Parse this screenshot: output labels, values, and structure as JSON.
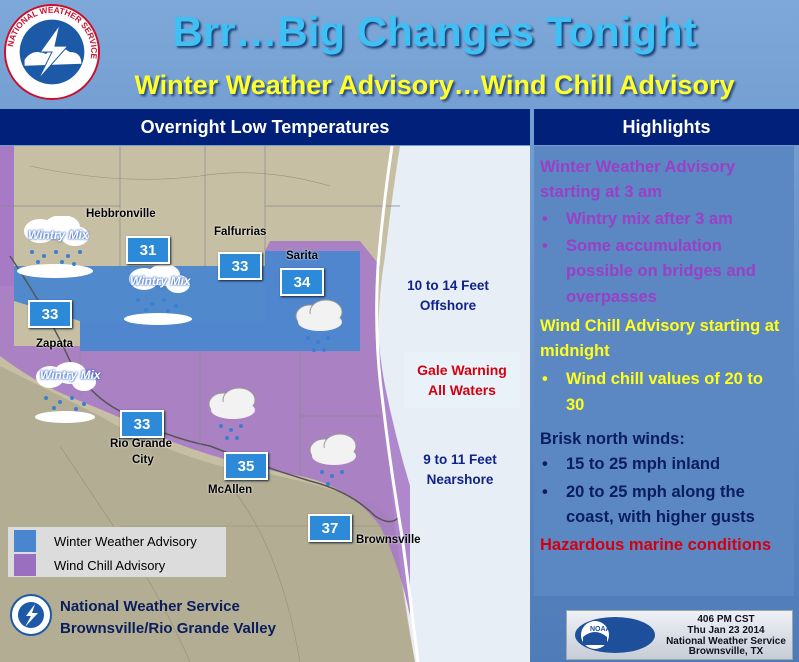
{
  "header": {
    "title": "Brr…Big Changes Tonight",
    "subtitle": "Winter Weather Advisory…Wind Chill Advisory",
    "logo_text": "NATIONAL WEATHER SERVICE"
  },
  "left_header": "Overnight Low Temperatures",
  "right_header": "Highlights",
  "map": {
    "temperatures": [
      {
        "id": "hebbronville-temp",
        "value": "31"
      },
      {
        "id": "falfurrias-temp",
        "value": "33"
      },
      {
        "id": "sarita-temp",
        "value": "34"
      },
      {
        "id": "zapata-temp",
        "value": "33"
      },
      {
        "id": "rio-grande-temp",
        "value": "33"
      },
      {
        "id": "mcallen-temp",
        "value": "35"
      },
      {
        "id": "brownsville-temp",
        "value": "37"
      }
    ],
    "cities": {
      "hebbronville": "Hebbronville",
      "falfurrias": "Falfurrias",
      "sarita": "Sarita",
      "zapata": "Zapata",
      "rio_grande_line1": "Rio Grande",
      "rio_grande_line2": "City",
      "mcallen": "McAllen",
      "brownsville": "Brownsville"
    },
    "wintry_mix_label": "Wintry Mix",
    "offshore_line1": "10 to 14 Feet",
    "offshore_line2": "Offshore",
    "gale_line1": "Gale Warning",
    "gale_line2": "All Waters",
    "nearshore_line1": "9 to 11 Feet",
    "nearshore_line2": "Nearshore"
  },
  "legend": {
    "items": [
      {
        "label": "Winter Weather Advisory",
        "color": "#4a86cf"
      },
      {
        "label": "Wind Chill Advisory",
        "color": "#9a6fbf"
      }
    ]
  },
  "highlights": {
    "wwa_line1": "Winter Weather Advisory",
    "wwa_line2": "starting at 3 am",
    "wwa_b1": "Wintry mix after 3 am",
    "wwa_b2_l1": "Some accumulation",
    "wwa_b2_l2": "possible on bridges and",
    "wwa_b2_l3": "overpasses",
    "wca_line1": "Wind Chill Advisory starting at",
    "wca_line2": "midnight",
    "wca_b1_l1": "Wind chill values of  20 to",
    "wca_b1_l2": "30",
    "winds_title": "Brisk north winds:",
    "winds_b1": "15 to 25 mph inland",
    "winds_b2_l1": "20 to 25 mph along the",
    "winds_b2_l2": "coast, with higher gusts",
    "marine": "Hazardous marine conditions"
  },
  "footer": {
    "line1": "National Weather Service",
    "line2": "Brownsville/Rio Grande Valley"
  },
  "stamp": {
    "logo_text": "NOAA",
    "time": "406 PM CST",
    "date": "Thu Jan 23 2014",
    "office": "National Weather Service",
    "location": "Brownsville, TX"
  },
  "colors": {
    "title": "#3ec0f5",
    "subtitle": "#ffff2a",
    "header_bar": "#00207a",
    "winter_weather_advisory": "#4a86cf",
    "wind_chill_advisory": "#9a6fbf"
  }
}
